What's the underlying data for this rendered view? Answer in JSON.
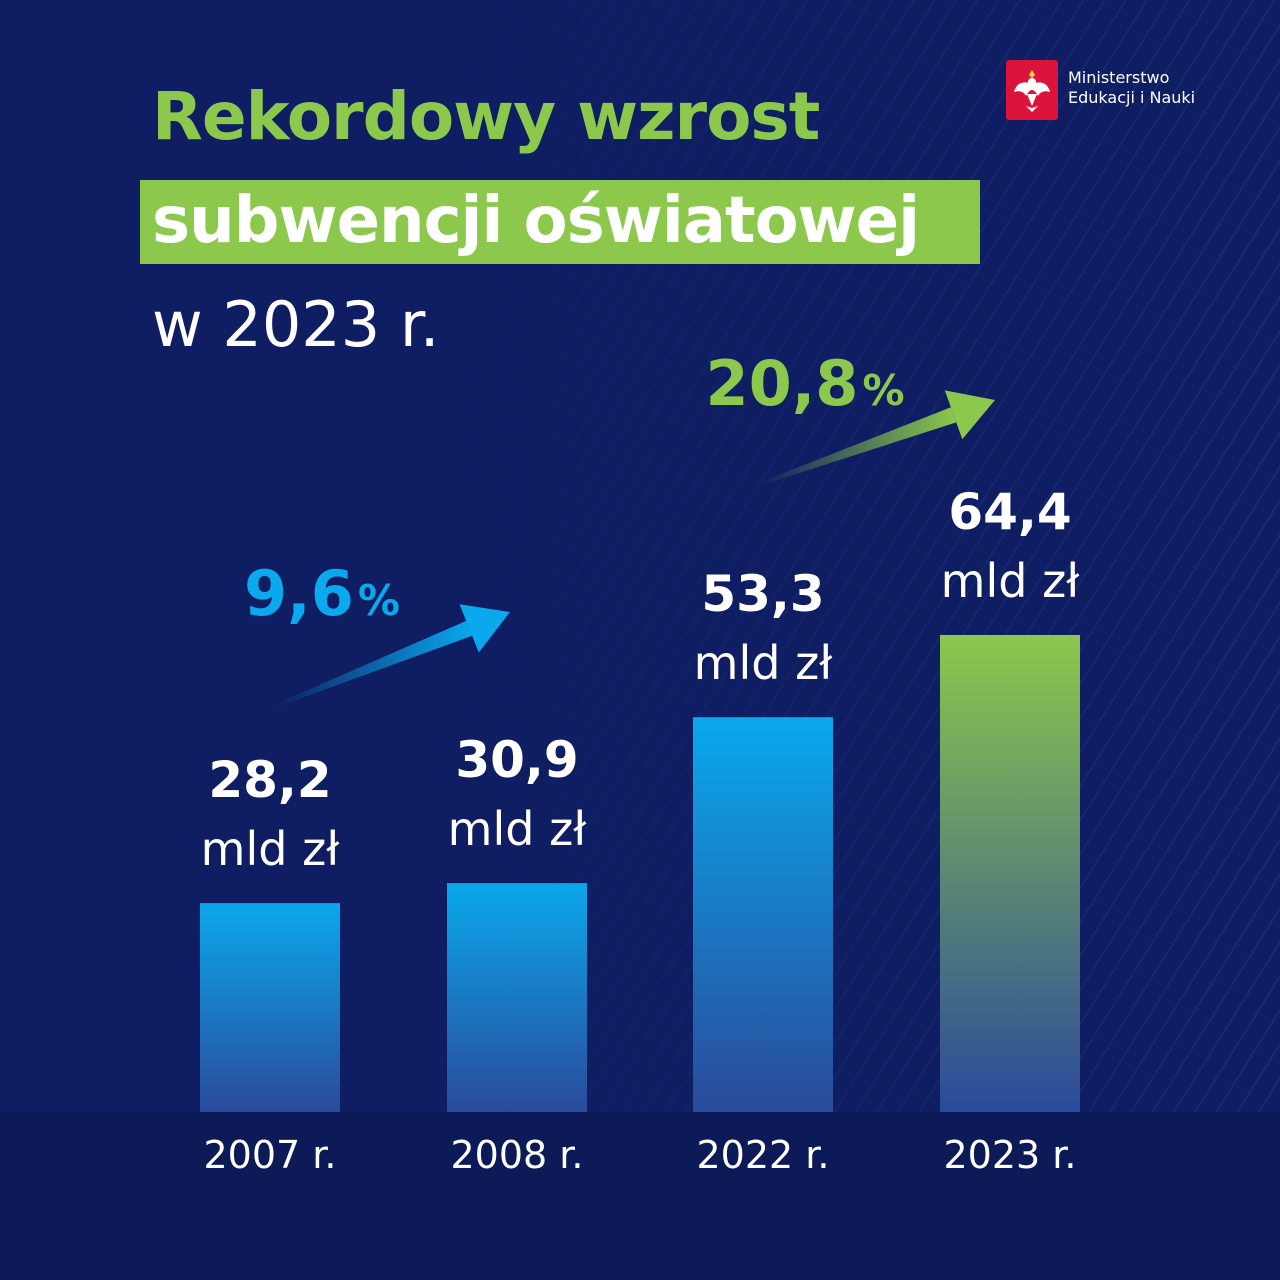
{
  "title": {
    "line1": "Rekordowy wzrost",
    "line2": "subwencji oświatowej",
    "line3": "w 2023 r."
  },
  "logo": {
    "line1": "Ministerstwo",
    "line2": "Edukacji i Nauki"
  },
  "colors": {
    "background": "#0f1e63",
    "green": "#8cc84b",
    "blue": "#0aa8ec",
    "white": "#ffffff"
  },
  "chart_data": {
    "type": "bar",
    "categories": [
      "2007 r.",
      "2008 r.",
      "2022 r.",
      "2023 r."
    ],
    "values": [
      28.2,
      30.9,
      53.3,
      64.4
    ],
    "value_labels": [
      "28,2",
      "30,9",
      "53,3",
      "64,4"
    ],
    "unit": "mld zł",
    "ylim": [
      0,
      64.4
    ],
    "grid": false,
    "highlight": [
      false,
      false,
      false,
      true
    ],
    "annotations": [
      {
        "text": "9,6",
        "suffix": "%",
        "from": "2007 r.",
        "to": "2008 r.",
        "color": "#0aa8ec"
      },
      {
        "text": "20,8",
        "suffix": "%",
        "from": "2022 r.",
        "to": "2023 r.",
        "color": "#8cc84b"
      }
    ]
  }
}
